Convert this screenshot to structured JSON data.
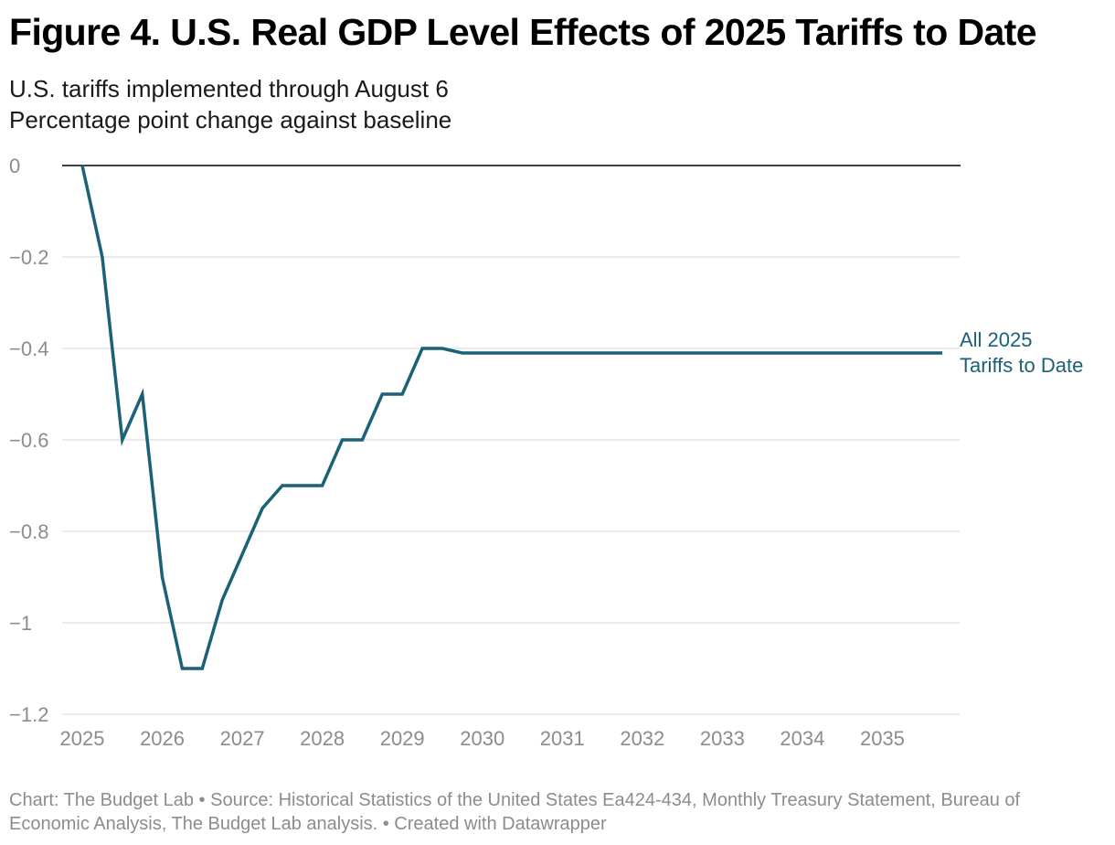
{
  "header": {
    "title": "Figure 4. U.S. Real GDP Level Effects of 2025 Tariffs to Date",
    "subtitle_line1": "U.S. tariffs implemented through August 6",
    "subtitle_line2": "Percentage point change against baseline"
  },
  "footer": {
    "text": "Chart: The Budget Lab • Source: Historical Statistics of the United States Ea424-434, Monthly Treasury Statement, Bureau of Economic Analysis, The Budget Lab analysis.  • Created with Datawrapper"
  },
  "chart_data": {
    "type": "line",
    "title": "Figure 4. U.S. Real GDP Level Effects of 2025 Tariffs to Date",
    "subtitle": "U.S. tariffs implemented through August 6",
    "ylabel": "Percentage point change against baseline",
    "xlim": [
      2025,
      2036
    ],
    "ylim": [
      -1.2,
      0
    ],
    "y_ticks": [
      0,
      -0.2,
      -0.4,
      -0.6,
      -0.8,
      -1,
      -1.2
    ],
    "y_tick_labels": [
      "0",
      "−0.2",
      "−0.4",
      "−0.6",
      "−0.8",
      "−1",
      "−1.2"
    ],
    "x_ticks": [
      2025,
      2026,
      2027,
      2028,
      2029,
      2030,
      2031,
      2032,
      2033,
      2034,
      2035
    ],
    "x_tick_labels": [
      "2025",
      "2026",
      "2027",
      "2028",
      "2029",
      "2030",
      "2031",
      "2032",
      "2033",
      "2034",
      "2035"
    ],
    "grid": true,
    "legend": "end-of-line label",
    "colors": {
      "series": "#1b6177",
      "grid": "#dddddd",
      "baseline": "#000000",
      "ticks": "#8c8c8c"
    },
    "series": [
      {
        "name": "All 2025 Tariffs to Date",
        "label_lines": [
          "All 2025",
          "Tariffs to Date"
        ],
        "points": [
          [
            2025.0,
            0
          ],
          [
            2025.25,
            -0.2
          ],
          [
            2025.5,
            -0.6
          ],
          [
            2025.75,
            -0.5
          ],
          [
            2026.0,
            -0.9
          ],
          [
            2026.25,
            -1.1
          ],
          [
            2026.5,
            -1.1
          ],
          [
            2026.75,
            -0.95
          ],
          [
            2027.0,
            -0.85
          ],
          [
            2027.25,
            -0.75
          ],
          [
            2027.5,
            -0.7
          ],
          [
            2027.75,
            -0.7
          ],
          [
            2028.0,
            -0.7
          ],
          [
            2028.25,
            -0.6
          ],
          [
            2028.5,
            -0.6
          ],
          [
            2028.75,
            -0.5
          ],
          [
            2029.0,
            -0.5
          ],
          [
            2029.25,
            -0.4
          ],
          [
            2029.5,
            -0.4
          ],
          [
            2029.75,
            -0.41
          ],
          [
            2030.0,
            -0.41
          ],
          [
            2031.0,
            -0.41
          ],
          [
            2032.0,
            -0.41
          ],
          [
            2033.0,
            -0.41
          ],
          [
            2034.0,
            -0.41
          ],
          [
            2035.0,
            -0.41
          ],
          [
            2035.75,
            -0.41
          ]
        ]
      }
    ]
  }
}
